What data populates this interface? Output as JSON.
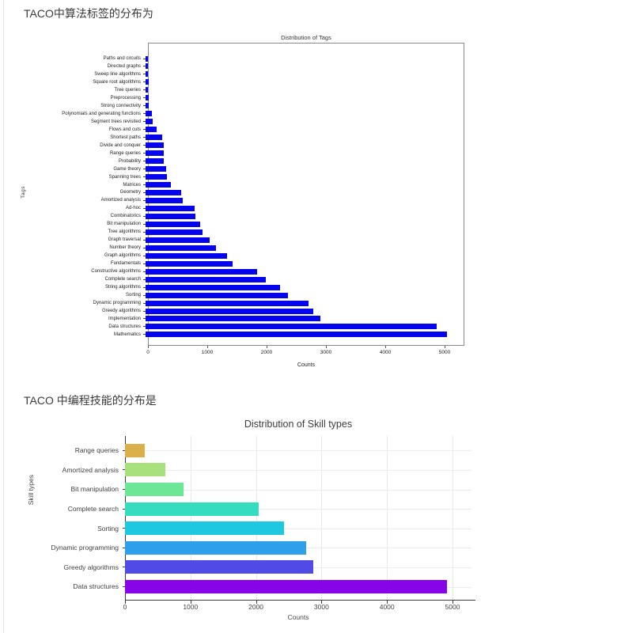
{
  "page": {
    "heading1": "TACO中算法标签的分布为",
    "heading2": "TACO 中编程技能的分布是"
  },
  "chart_data": [
    {
      "type": "bar",
      "orientation": "horizontal",
      "title": "Distribution of Tags",
      "xlabel": "Counts",
      "ylabel": "Tags",
      "bar_color": "#0404ee",
      "xlim": [
        0,
        5333
      ],
      "xticks": [
        0,
        1000,
        2000,
        3000,
        4000,
        5000
      ],
      "grid": false,
      "categories_top_to_bottom": [
        "Paths and circuits",
        "Directed graphs",
        "Sweep line algorithms",
        "Square root algorithms",
        "Tree queries",
        "Preprocessing",
        "Strong connectivity",
        "Polynomials and generating functions",
        "Segment trees revisited",
        "Flows and cuts",
        "Shortest paths",
        "Divide and conquer",
        "Range queries",
        "Probability",
        "Game theory",
        "Spanning trees",
        "Matrices",
        "Geometry",
        "Amortized analysis",
        "Ad-hoc",
        "Combinatorics",
        "Bit manipulation",
        "Tree algorithms",
        "Graph traversal",
        "Number theory",
        "Graph algorithms",
        "Fundamentals",
        "Constructive algorithms",
        "Complete search",
        "String algorithms",
        "Sorting",
        "Dynamic programming",
        "Greedy algorithms",
        "Implementation",
        "Data structures",
        "Mathematics"
      ],
      "values": [
        40,
        45,
        45,
        50,
        35,
        55,
        55,
        110,
        125,
        185,
        275,
        300,
        310,
        300,
        350,
        365,
        420,
        600,
        620,
        820,
        840,
        920,
        960,
        1080,
        1180,
        1370,
        1470,
        1880,
        2030,
        2260,
        2400,
        2750,
        2830,
        2950,
        4900,
        5080
      ]
    },
    {
      "type": "bar",
      "orientation": "horizontal",
      "title": "Distribution of Skill types",
      "xlabel": "Counts",
      "ylabel": "Skill types",
      "xlim": [
        0,
        5290
      ],
      "xticks": [
        0,
        1000,
        2000,
        3000,
        4000,
        5000
      ],
      "grid": true,
      "categories_top_to_bottom": [
        "Range queries",
        "Amortized analysis",
        "Bit manipulation",
        "Complete search",
        "Sorting",
        "Dynamic programming",
        "Greedy algorithms",
        "Data structures"
      ],
      "values": [
        300,
        620,
        890,
        2040,
        2430,
        2770,
        2870,
        4920
      ],
      "bar_colors": [
        "#dbb04b",
        "#a8e07c",
        "#6ce795",
        "#35dcbe",
        "#1ec9e0",
        "#2e9fea",
        "#4f4be4",
        "#8804e8"
      ]
    }
  ]
}
